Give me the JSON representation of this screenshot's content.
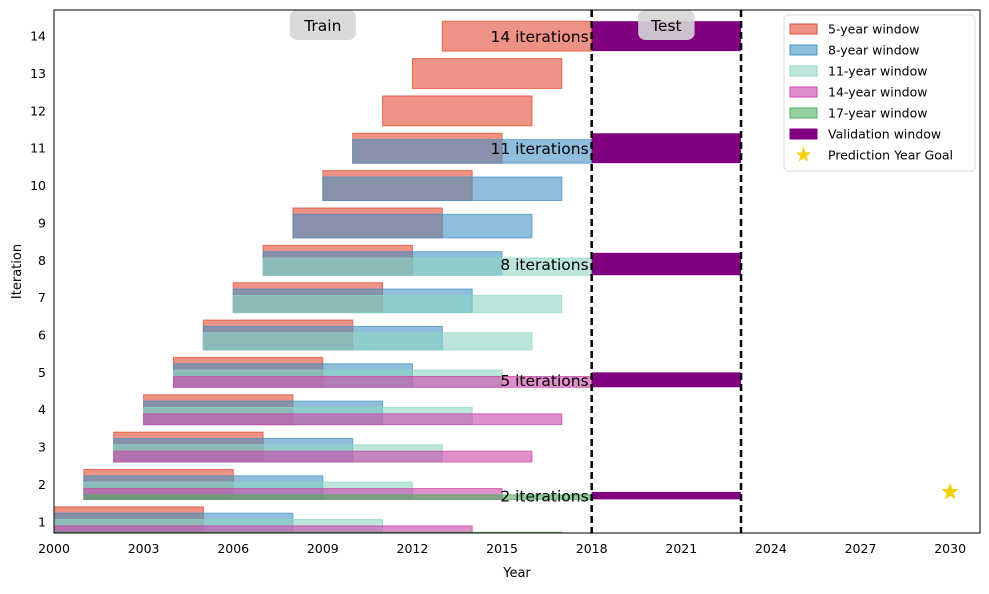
{
  "chart_data": {
    "type": "bar",
    "orientation": "horizontal",
    "xlabel": "Year",
    "ylabel": "Iteration",
    "xlim": [
      2000,
      2031
    ],
    "ylim": [
      0.7,
      14.7
    ],
    "xticks": [
      2000,
      2003,
      2006,
      2009,
      2012,
      2015,
      2018,
      2021,
      2024,
      2027,
      2030
    ],
    "yticks": [
      1,
      2,
      3,
      4,
      5,
      6,
      7,
      8,
      9,
      10,
      11,
      12,
      13,
      14
    ],
    "grid": false,
    "legend_position": "top-right",
    "region_labels": [
      {
        "text": "Train",
        "x": 2009,
        "y": 14.3
      },
      {
        "text": "Test",
        "x": 2020.5,
        "y": 14.3
      }
    ],
    "test_boundaries": [
      2018,
      2023
    ],
    "series": [
      {
        "name": "5-year window",
        "color": "#e34a33",
        "start": 2000,
        "end": 2018,
        "window": 5,
        "fill_opacity": 0.6,
        "iterations": [
          1,
          2,
          3,
          4,
          5,
          6,
          7,
          8,
          9,
          10,
          11,
          12,
          13,
          14
        ]
      },
      {
        "name": "8-year window",
        "color": "#4393c3",
        "start": 2000,
        "end": 2018,
        "window": 8,
        "fill_opacity": 0.6,
        "iterations": [
          1,
          2,
          3,
          4,
          5,
          6,
          7,
          8,
          9,
          10,
          11
        ]
      },
      {
        "name": "11-year window",
        "color": "#8fd5c3",
        "start": 2000,
        "end": 2018,
        "window": 11,
        "fill_opacity": 0.6,
        "iterations": [
          1,
          2,
          3,
          4,
          5,
          6,
          7,
          8
        ]
      },
      {
        "name": "14-year window",
        "color": "#cc44a8",
        "start": 2000,
        "end": 2018,
        "window": 14,
        "fill_opacity": 0.6,
        "iterations": [
          1,
          2,
          3,
          4,
          5
        ]
      },
      {
        "name": "17-year window",
        "color": "#4daf60",
        "start": 2000,
        "end": 2018,
        "window": 17,
        "fill_opacity": 0.6,
        "iterations": [
          1,
          2
        ]
      }
    ],
    "validation": {
      "name": "Validation window",
      "color": "#800080",
      "start": 2018,
      "end": 2023,
      "bands": [
        {
          "iteration": 14,
          "height": 0.8,
          "label": "14 iterations"
        },
        {
          "iteration": 11,
          "height": 0.8,
          "label": "11 iterations"
        },
        {
          "iteration": 8,
          "height": 0.6,
          "label": "8 iterations"
        },
        {
          "iteration": 5,
          "height": 0.4,
          "label": "5 iterations"
        },
        {
          "iteration": 2,
          "height": 0.2,
          "label": "2 iterations"
        }
      ]
    },
    "goal": {
      "name": "Prediction Year Goal",
      "x": 2030,
      "y": 1.8,
      "color": "#f2d10c"
    }
  }
}
